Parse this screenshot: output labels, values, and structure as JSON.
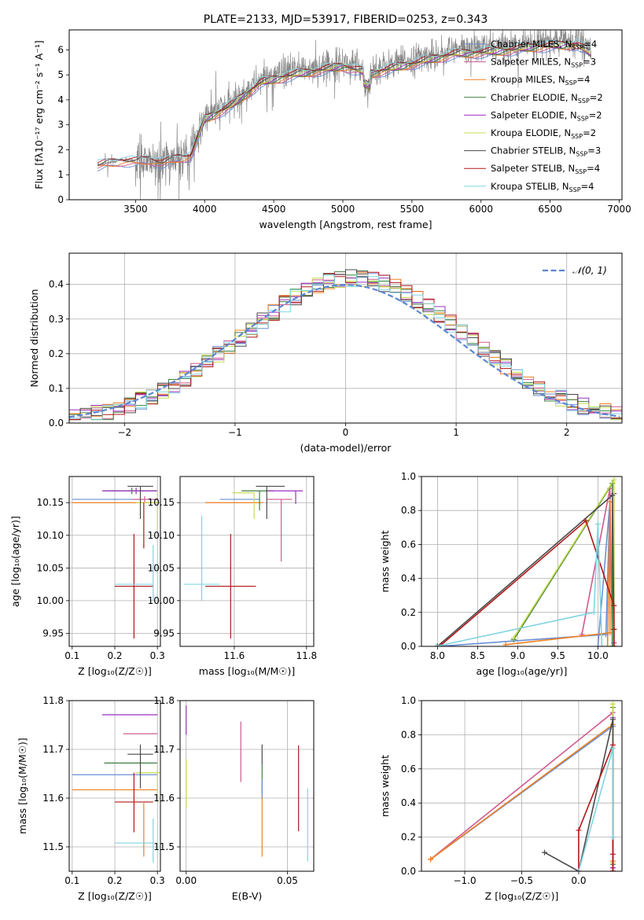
{
  "colors": {
    "chabrier_miles": "#6a8fd6",
    "salpeter_miles": "#d05a8f",
    "kroupa_miles": "#f08020",
    "chabrier_elodie": "#3f7f3f",
    "salpeter_elodie": "#9b30c0",
    "kroupa_elodie": "#c8dc50",
    "chabrier_stelib": "#4a4a4a",
    "salpeter_stelib": "#b01818",
    "kroupa_stelib": "#80d4e0",
    "spectrum": "#8a8a8a",
    "gaussian": "#5b86d0",
    "grid": "#b0b0b0"
  },
  "chart_data": [
    {
      "id": "spectrum",
      "type": "line",
      "title": "PLATE=2133, MJD=53917, FIBERID=0253, z=0.343",
      "xlabel": "wavelength [Angstrom, rest frame]",
      "ylabel": "Flux [fλ10⁻¹⁷ erg cm⁻² s⁻¹ A⁻¹]",
      "xlim": [
        3020,
        7020
      ],
      "ylim": [
        0,
        6.8
      ],
      "xticks": [
        3500,
        4000,
        4500,
        5000,
        5500,
        6000,
        6500,
        7000
      ],
      "yticks": [
        0,
        1,
        2,
        3,
        4,
        5,
        6
      ],
      "grid": false,
      "legend_position": "top-right",
      "legend": [
        {
          "label": "Chabrier MILES, N",
          "sub": "SSP",
          "suffix": "=4",
          "color": "chabrier_miles"
        },
        {
          "label": "Salpeter MILES, N",
          "sub": "SSP",
          "suffix": "=3",
          "color": "salpeter_miles"
        },
        {
          "label": "Kroupa MILES, N",
          "sub": "SSP",
          "suffix": "=4",
          "color": "kroupa_miles"
        },
        {
          "label": "Chabrier ELODIE, N",
          "sub": "SSP",
          "suffix": "=2",
          "color": "chabrier_elodie"
        },
        {
          "label": "Salpeter ELODIE, N",
          "sub": "SSP",
          "suffix": "=2",
          "color": "salpeter_elodie"
        },
        {
          "label": "Kroupa ELODIE, N",
          "sub": "SSP",
          "suffix": "=2",
          "color": "kroupa_elodie"
        },
        {
          "label": "Chabrier STELIB, N",
          "sub": "SSP",
          "suffix": "=3",
          "color": "chabrier_stelib"
        },
        {
          "label": "Salpeter STELIB, N",
          "sub": "SSP",
          "suffix": "=4",
          "color": "salpeter_stelib"
        },
        {
          "label": "Kroupa STELIB, N",
          "sub": "SSP",
          "suffix": "=4",
          "color": "kroupa_stelib"
        }
      ],
      "continuum": {
        "x": [
          3225,
          3400,
          3500,
          3600,
          3700,
          3800,
          3900,
          4000,
          4200,
          4400,
          4600,
          4800,
          5000,
          5200,
          5500,
          5800,
          6100,
          6400,
          6700,
          6800
        ],
        "y": [
          1.4,
          1.6,
          1.55,
          1.65,
          1.5,
          1.7,
          1.8,
          3.3,
          3.9,
          4.8,
          5.1,
          5.3,
          5.5,
          5.2,
          5.6,
          6.0,
          6.1,
          6.3,
          6.4,
          6.0
        ]
      }
    },
    {
      "id": "residuals",
      "type": "histogram",
      "xlabel": "(data-model)/error",
      "ylabel": "Normed distribution",
      "xlim": [
        -2.5,
        2.5
      ],
      "ylim": [
        0,
        0.49
      ],
      "xticks": [
        -2,
        -1,
        0,
        1,
        2
      ],
      "yticks": [
        0.0,
        0.1,
        0.2,
        0.3,
        0.4
      ],
      "grid": true,
      "legend_position": "top-right",
      "legend": [
        {
          "label": "𝒩(0, 1)",
          "color": "gaussian"
        }
      ],
      "bin_width": 0.1
    },
    {
      "id": "age_vs_Z",
      "type": "errorbar",
      "xlabel": "Z [log₁₀(Z/Z☉)]",
      "ylabel": "age  [log₁₀(age/yr)]",
      "xlim": [
        0.093,
        0.307
      ],
      "ylim": [
        9.93,
        10.19
      ],
      "xticks": [
        0.1,
        0.2,
        0.3
      ],
      "yticks": [
        9.95,
        10.0,
        10.05,
        10.1,
        10.15
      ],
      "grid": true,
      "points": [
        {
          "series": "chabrier_miles",
          "x": 0.2,
          "xerr": [
            0.1,
            0.1
          ],
          "y": 10.155,
          "yerr": [
            0,
            0
          ]
        },
        {
          "series": "kroupa_miles",
          "x": 0.2,
          "xerr": [
            0.1,
            0.1
          ],
          "y": 10.15,
          "yerr": [
            0,
            0
          ]
        },
        {
          "series": "salpeter_miles",
          "x": 0.27,
          "xerr": [
            0.03,
            0.03
          ],
          "y": 10.155,
          "yerr": [
            0.005,
            0.005
          ]
        },
        {
          "series": "chabrier_elodie",
          "x": 0.24,
          "xerr": [
            0.065,
            0.06
          ],
          "y": 10.168,
          "yerr": [
            0.005,
            0.005
          ]
        },
        {
          "series": "salpeter_elodie",
          "x": 0.25,
          "xerr": [
            0.08,
            0.05
          ],
          "y": 10.168,
          "yerr": [
            0.005,
            0.005
          ]
        },
        {
          "series": "kroupa_elodie",
          "x": 0.3,
          "xerr": [
            0.05,
            0.01
          ],
          "y": 10.15,
          "yerr": [
            0.04,
            0.02
          ]
        },
        {
          "series": "chabrier_stelib",
          "x": 0.26,
          "xerr": [
            0.03,
            0.03
          ],
          "y": 10.175,
          "yerr": [
            0.05,
            0.0
          ]
        },
        {
          "series": "salpeter_stelib",
          "x": 0.268,
          "xerr": [
            0.0,
            0.0
          ],
          "y": 10.15,
          "yerr": [
            0.07,
            0.0
          ]
        },
        {
          "series": "salpeter_stelib",
          "x": 0.245,
          "xerr": [
            0.045,
            0.045
          ],
          "y": 10.022,
          "yerr": [
            0.08,
            0.08
          ]
        },
        {
          "series": "kroupa_stelib",
          "x": 0.29,
          "xerr": [
            0.09,
            0.0
          ],
          "y": 10.025,
          "yerr": [
            0.025,
            0.06
          ]
        }
      ]
    },
    {
      "id": "age_vs_mass",
      "type": "errorbar",
      "xlabel": "mass [log₁₀(M/M☉)]",
      "ylabel": "",
      "xlim": [
        11.45,
        11.82
      ],
      "ylim": [
        9.93,
        10.19
      ],
      "xticks": [
        11.6,
        11.8
      ],
      "yticks": [
        9.95,
        10.0,
        10.05,
        10.1,
        10.15
      ],
      "grid": true,
      "points": [
        {
          "series": "chabrier_miles",
          "x": 11.64,
          "xerr": [
            0.08,
            0.03
          ],
          "y": 10.155,
          "yerr": [
            0,
            0
          ]
        },
        {
          "series": "kroupa_miles",
          "x": 11.62,
          "xerr": [
            0.1,
            0.06
          ],
          "y": 10.15,
          "yerr": [
            0.0,
            0.0
          ]
        },
        {
          "series": "salpeter_miles",
          "x": 11.73,
          "xerr": [
            0.04,
            0.03
          ],
          "y": 10.155,
          "yerr": [
            0.095,
            0.0
          ]
        },
        {
          "series": "chabrier_elodie",
          "x": 11.67,
          "xerr": [
            0.05,
            0.04
          ],
          "y": 10.168,
          "yerr": [
            0.03,
            0.0
          ]
        },
        {
          "series": "salpeter_elodie",
          "x": 11.77,
          "xerr": [
            0.08,
            0.02
          ],
          "y": 10.168,
          "yerr": [
            0.02,
            0.0
          ]
        },
        {
          "series": "kroupa_elodie",
          "x": 11.655,
          "xerr": [
            0.06,
            0.0
          ],
          "y": 10.165,
          "yerr": [
            0.04,
            0.0
          ]
        },
        {
          "series": "chabrier_stelib",
          "x": 11.69,
          "xerr": [
            0.03,
            0.05
          ],
          "y": 10.175,
          "yerr": [
            0.05,
            0.0
          ]
        },
        {
          "series": "salpeter_stelib",
          "x": 11.59,
          "xerr": [
            0.07,
            0.07
          ],
          "y": 10.022,
          "yerr": [
            0.08,
            0.08
          ]
        },
        {
          "series": "kroupa_stelib",
          "x": 11.51,
          "xerr": [
            0.05,
            0.05
          ],
          "y": 10.025,
          "yerr": [
            0.025,
            0.105
          ]
        }
      ]
    },
    {
      "id": "massweight_vs_age",
      "type": "line",
      "xlabel": "age  [log₁₀(age/yr)]",
      "ylabel": "mass weight",
      "xlim": [
        7.8,
        10.3
      ],
      "ylim": [
        0.0,
        1.0
      ],
      "xticks": [
        8.0,
        8.5,
        9.0,
        9.5,
        10.0
      ],
      "yticks": [
        0.0,
        0.2,
        0.4,
        0.6,
        0.8,
        1.0
      ],
      "grid": true,
      "series": [
        {
          "name": "chabrier_miles",
          "x": [
            8.0,
            10.1,
            10.15,
            10.0
          ],
          "y": [
            0.0,
            0.07,
            0.85,
            0.0
          ]
        },
        {
          "name": "salpeter_miles",
          "x": [
            9.8,
            10.15,
            10.18
          ],
          "y": [
            0.07,
            0.93,
            0.0
          ]
        },
        {
          "name": "kroupa_miles",
          "x": [
            8.85,
            10.15,
            10.15,
            10.12
          ],
          "y": [
            0.01,
            0.08,
            0.85,
            0.0
          ]
        },
        {
          "name": "chabrier_elodie",
          "x": [
            8.95,
            10.18,
            10.18
          ],
          "y": [
            0.04,
            0.96,
            0.0
          ]
        },
        {
          "name": "salpeter_elodie",
          "x": [
            10.2,
            10.2
          ],
          "y": [
            0.02,
            0.9
          ]
        },
        {
          "name": "kroupa_elodie",
          "x": [
            8.95,
            10.2,
            10.2
          ],
          "y": [
            0.05,
            0.98,
            0.0
          ]
        },
        {
          "name": "chabrier_stelib",
          "x": [
            8.0,
            10.18,
            10.2,
            10.2
          ],
          "y": [
            0.0,
            0.89,
            0.1,
            0.0
          ]
        },
        {
          "name": "salpeter_stelib",
          "x": [
            8.05,
            9.85,
            10.2,
            10.2,
            10.2
          ],
          "y": [
            0.01,
            0.74,
            0.24,
            0.1,
            0.0
          ]
        },
        {
          "name": "kroupa_stelib",
          "x": [
            7.98,
            9.95,
            10.0,
            10.05
          ],
          "y": [
            0.0,
            0.2,
            0.72,
            0.0
          ]
        }
      ]
    },
    {
      "id": "mass_vs_Z",
      "type": "errorbar",
      "xlabel": "Z [log₁₀(Z/Z☉)]",
      "ylabel": "mass [log₁₀(M/M☉)]",
      "xlim": [
        0.093,
        0.307
      ],
      "ylim": [
        11.45,
        11.8
      ],
      "xticks": [
        0.1,
        0.2,
        0.3
      ],
      "yticks": [
        11.5,
        11.6,
        11.7,
        11.8
      ],
      "grid": true,
      "points": [
        {
          "series": "chabrier_miles",
          "x": 0.2,
          "xerr": [
            0.1,
            0.1
          ],
          "y": 11.648,
          "yerr": [
            0,
            0
          ]
        },
        {
          "series": "kroupa_miles",
          "x": 0.2,
          "xerr": [
            0.1,
            0.1
          ],
          "y": 11.617,
          "yerr": [
            0,
            0
          ]
        },
        {
          "series": "salpeter_miles",
          "x": 0.27,
          "xerr": [
            0.05,
            0.03
          ],
          "y": 11.732,
          "yerr": [
            0,
            0
          ]
        },
        {
          "series": "chabrier_elodie",
          "x": 0.24,
          "xerr": [
            0.065,
            0.06
          ],
          "y": 11.672,
          "yerr": [
            0,
            0
          ]
        },
        {
          "series": "salpeter_elodie",
          "x": 0.25,
          "xerr": [
            0.08,
            0.05
          ],
          "y": 11.771,
          "yerr": [
            0,
            0
          ]
        },
        {
          "series": "kroupa_elodie",
          "x": 0.3,
          "xerr": [
            0.05,
            0.01
          ],
          "y": 11.652,
          "yerr": [
            0.06,
            0.02
          ]
        },
        {
          "series": "chabrier_stelib",
          "x": 0.26,
          "xerr": [
            0.03,
            0.03
          ],
          "y": 11.69,
          "yerr": [
            0.07,
            0.02
          ]
        },
        {
          "series": "kroupa_miles",
          "x": 0.268,
          "xerr": [
            0.0,
            0.0
          ],
          "y": 11.59,
          "yerr": [
            0.11,
            0.0
          ]
        },
        {
          "series": "salpeter_stelib",
          "x": 0.245,
          "xerr": [
            0.045,
            0.045
          ],
          "y": 11.592,
          "yerr": [
            0.062,
            0.06
          ]
        },
        {
          "series": "kroupa_stelib",
          "x": 0.29,
          "xerr": [
            0.09,
            0.0
          ],
          "y": 11.508,
          "yerr": [
            0.04,
            0.05
          ]
        }
      ]
    },
    {
      "id": "mass_vs_ebv",
      "type": "errorbar",
      "xlabel": "E(B-V)",
      "ylabel": "",
      "xlim": [
        -0.003,
        0.063
      ],
      "ylim": [
        11.45,
        11.8
      ],
      "xticks": [
        0.0,
        0.05
      ],
      "yticks": [
        11.5,
        11.6,
        11.7,
        11.8
      ],
      "grid": true,
      "points": [
        {
          "series": "salpeter_elodie",
          "x": 0.0,
          "xerr": [
            0,
            0
          ],
          "y": 11.76,
          "yerr": [
            0.03,
            0.03
          ]
        },
        {
          "series": "kroupa_elodie",
          "x": 0.0,
          "xerr": [
            0,
            0
          ],
          "y": 11.63,
          "yerr": [
            0.05,
            0.05
          ]
        },
        {
          "series": "salpeter_miles",
          "x": 0.027,
          "xerr": [
            0,
            0
          ],
          "y": 11.695,
          "yerr": [
            0.062,
            0.062
          ]
        },
        {
          "series": "chabrier_stelib",
          "x": 0.0375,
          "xerr": [
            0,
            0
          ],
          "y": 11.69,
          "yerr": [
            0.02,
            0.02
          ]
        },
        {
          "series": "chabrier_elodie",
          "x": 0.0375,
          "xerr": [
            0,
            0
          ],
          "y": 11.64,
          "yerr": [
            0.03,
            0.03
          ]
        },
        {
          "series": "kroupa_miles",
          "x": 0.0375,
          "xerr": [
            0,
            0
          ],
          "y": 11.55,
          "yerr": [
            0.07,
            0.06
          ]
        },
        {
          "series": "chabrier_miles",
          "x": 0.0375,
          "xerr": [
            0,
            0
          ],
          "y": 11.62,
          "yerr": [
            0.02,
            0.02
          ]
        },
        {
          "series": "salpeter_stelib",
          "x": 0.0555,
          "xerr": [
            0,
            0
          ],
          "y": 11.62,
          "yerr": [
            0.088,
            0.088
          ]
        },
        {
          "series": "kroupa_stelib",
          "x": 0.06,
          "xerr": [
            0,
            0
          ],
          "y": 11.545,
          "yerr": [
            0.075,
            0.075
          ]
        }
      ]
    },
    {
      "id": "massweight_vs_Z",
      "type": "line",
      "xlabel": "Z [log₁₀(Z/Z☉)]",
      "ylabel": "mass weight",
      "xlim": [
        -1.38,
        0.38
      ],
      "ylim": [
        0.0,
        1.0
      ],
      "xticks": [
        -1.0,
        -0.5,
        0.0
      ],
      "yticks": [
        0.0,
        0.2,
        0.4,
        0.6,
        0.8,
        1.0
      ],
      "grid": true,
      "series": [
        {
          "name": "chabrier_miles",
          "x": [
            -1.3,
            0.3,
            0.3
          ],
          "y": [
            0.07,
            0.85,
            0.0
          ]
        },
        {
          "name": "salpeter_miles",
          "x": [
            -1.3,
            0.3,
            0.3
          ],
          "y": [
            0.07,
            0.93,
            0.0
          ]
        },
        {
          "name": "kroupa_miles",
          "x": [
            -1.3,
            0.3,
            0.3,
            0.3
          ],
          "y": [
            0.07,
            0.86,
            0.06,
            0.0
          ]
        },
        {
          "name": "chabrier_elodie",
          "x": [
            0.3,
            0.3
          ],
          "y": [
            0.04,
            0.96
          ]
        },
        {
          "name": "salpeter_elodie",
          "x": [
            0.3,
            0.3
          ],
          "y": [
            0.02,
            0.9
          ]
        },
        {
          "name": "kroupa_elodie",
          "x": [
            0.3,
            0.3
          ],
          "y": [
            0.05,
            0.98
          ]
        },
        {
          "name": "chabrier_stelib",
          "x": [
            -0.3,
            0.0,
            0.3,
            0.3
          ],
          "y": [
            0.11,
            0.0,
            0.89,
            0.0
          ]
        },
        {
          "name": "salpeter_stelib",
          "x": [
            0.0,
            0.0,
            0.3,
            0.3,
            0.3
          ],
          "y": [
            0.0,
            0.24,
            0.74,
            0.1,
            0.0
          ]
        },
        {
          "name": "kroupa_stelib",
          "x": [
            0.0,
            0.3,
            0.3
          ],
          "y": [
            0.0,
            0.72,
            0.2
          ]
        }
      ]
    }
  ]
}
